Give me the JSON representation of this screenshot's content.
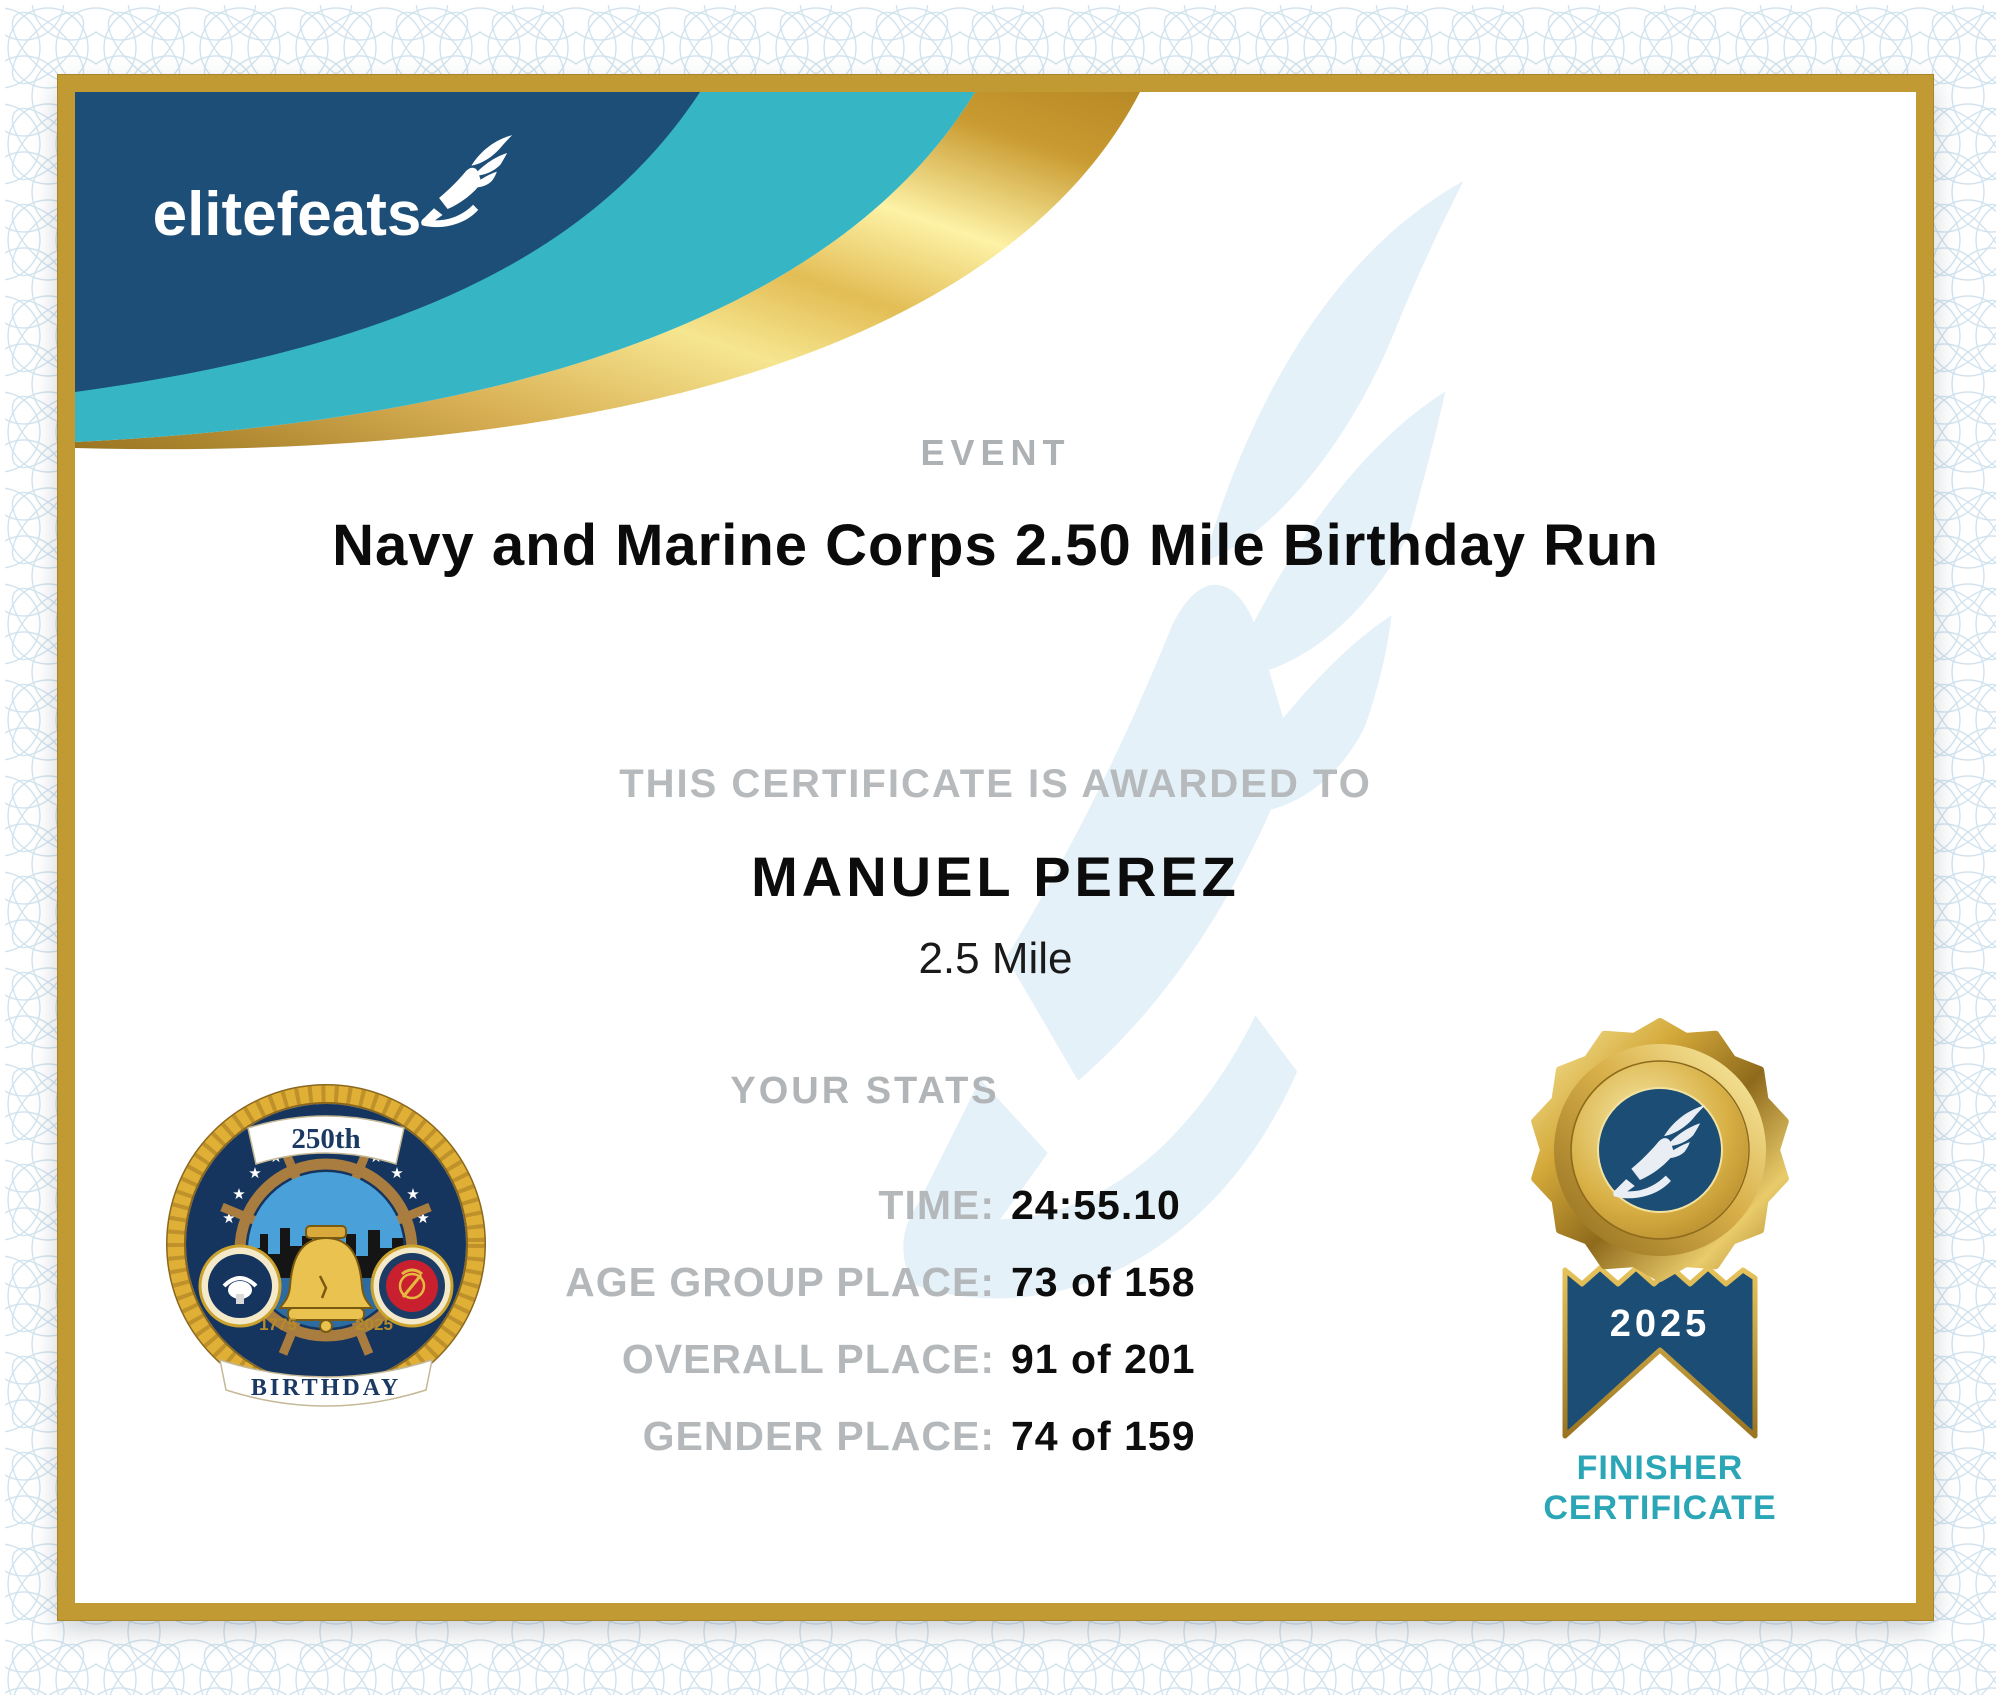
{
  "brand": {
    "logo_text": "elitefeats"
  },
  "header": {
    "event_label": "EVENT",
    "event_title": "Navy and Marine Corps 2.50 Mile Birthday Run"
  },
  "award": {
    "intro": "THIS CERTIFICATE IS AWARDED TO",
    "recipient": "MANUEL PEREZ",
    "distance": "2.5 Mile"
  },
  "stats": {
    "heading": "YOUR STATS",
    "rows": [
      {
        "label": "TIME:",
        "value": "24:55.10"
      },
      {
        "label": "AGE GROUP PLACE:",
        "value": "73 of 158"
      },
      {
        "label": "OVERALL PLACE:",
        "value": "91 of 201"
      },
      {
        "label": "GENDER PLACE:",
        "value": "74 of 159"
      }
    ]
  },
  "seal": {
    "anniversary": "250th",
    "banner": "BIRTHDAY",
    "year_from": "1775",
    "year_to": "2025"
  },
  "medal": {
    "year": "2025",
    "caption_line1": "FINISHER",
    "caption_line2": "CERTIFICATE"
  },
  "colors": {
    "navy": "#1d4e77",
    "teal": "#36b5c4",
    "frame_gold": "#c19a33",
    "accent_teal": "#2ba6b6",
    "label_gray": "#b5b8ba",
    "ink": "#0c0c0c",
    "watermark_blue": "#e4f1f8"
  }
}
